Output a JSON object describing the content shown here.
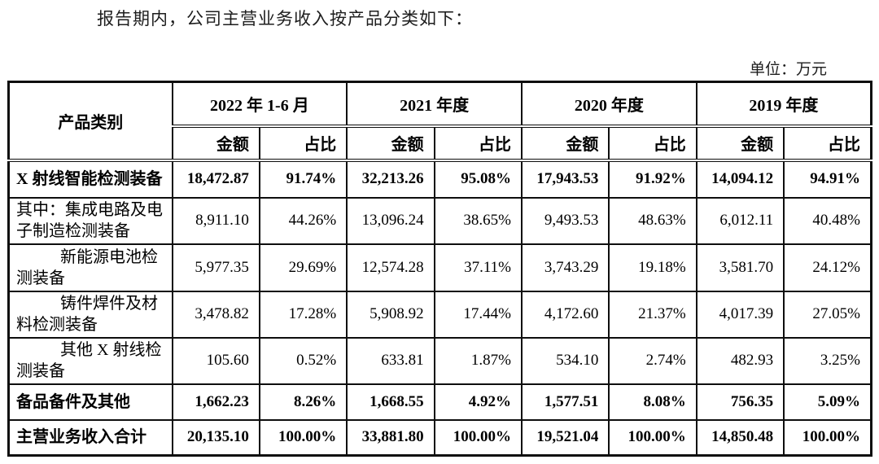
{
  "page": {
    "intro_text": "报告期内，公司主营业务收入按产品分类如下：",
    "unit_label": "单位：万元"
  },
  "table": {
    "corner_header": "产品类别",
    "periods": [
      {
        "label": "2022 年 1-6 月"
      },
      {
        "label": "2021 年度"
      },
      {
        "label": "2020 年度"
      },
      {
        "label": "2019 年度"
      }
    ],
    "amount_label": "金额",
    "ratio_label": "占比",
    "rows": [
      {
        "name": "X 射线智能检测装备",
        "bold": true,
        "values": [
          "18,472.87",
          "91.74%",
          "32,213.26",
          "95.08%",
          "17,943.53",
          "91.92%",
          "14,094.12",
          "94.91%"
        ]
      },
      {
        "name": "其中：集成电路及电子制造检测装备",
        "bold": false,
        "values": [
          "8,911.10",
          "44.26%",
          "13,096.24",
          "38.65%",
          "9,493.53",
          "48.63%",
          "6,012.11",
          "40.48%"
        ]
      },
      {
        "name": "新能源电池检测装备",
        "bold": false,
        "values": [
          "5,977.35",
          "29.69%",
          "12,574.28",
          "37.11%",
          "3,743.29",
          "19.18%",
          "3,581.70",
          "24.12%"
        ]
      },
      {
        "name": "铸件焊件及材料检测装备",
        "bold": false,
        "values": [
          "3,478.82",
          "17.28%",
          "5,908.92",
          "17.44%",
          "4,172.60",
          "21.37%",
          "4,017.39",
          "27.05%"
        ]
      },
      {
        "name": "其他 X 射线检测装备",
        "bold": false,
        "values": [
          "105.60",
          "0.52%",
          "633.81",
          "1.87%",
          "534.10",
          "2.74%",
          "482.93",
          "3.25%"
        ]
      },
      {
        "name": "备品备件及其他",
        "bold": true,
        "values": [
          "1,662.23",
          "8.26%",
          "1,668.55",
          "4.92%",
          "1,577.51",
          "8.08%",
          "756.35",
          "5.09%"
        ]
      },
      {
        "name": "主营业务收入合计",
        "bold": true,
        "values": [
          "20,135.10",
          "100.00%",
          "33,881.80",
          "100.00%",
          "19,521.04",
          "100.00%",
          "14,850.48",
          "100.00%"
        ]
      }
    ]
  }
}
